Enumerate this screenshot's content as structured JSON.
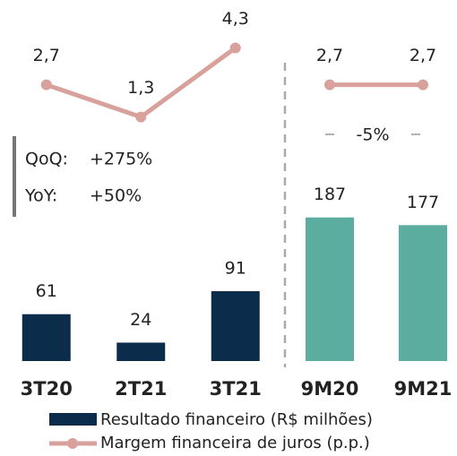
{
  "chart_data": [
    {
      "type": "bar",
      "categories": [
        "3T20",
        "2T21",
        "3T21"
      ],
      "ylim": [
        0,
        200
      ],
      "y2lim": [
        0,
        5
      ],
      "series": [
        {
          "name": "Resultado financeiro (R$ milhões)",
          "type": "bar",
          "color": "#0b2d4b",
          "values": [
            61,
            24,
            91
          ]
        },
        {
          "name": "Margem financeira de juros (p.p.)",
          "type": "line",
          "axis": "y2",
          "color": "#d9a19b",
          "values": [
            2.7,
            1.3,
            4.3
          ],
          "value_labels": [
            "2,7",
            "1,3",
            "4,3"
          ]
        }
      ],
      "annotations": [
        "QoQ:",
        "+275%",
        "YoY:",
        "+50%"
      ]
    },
    {
      "type": "bar",
      "categories": [
        "9M20",
        "9M21"
      ],
      "ylim": [
        0,
        200
      ],
      "y2lim": [
        0,
        5
      ],
      "series": [
        {
          "type": "bar",
          "color": "#5aad9f",
          "values": [
            187,
            177
          ]
        },
        {
          "type": "line",
          "axis": "y2",
          "color": "#d9a19b",
          "values": [
            2.7,
            2.7
          ],
          "value_labels": [
            "2,7",
            "2,7"
          ]
        }
      ],
      "annotations": [
        "-5%"
      ]
    }
  ]
}
